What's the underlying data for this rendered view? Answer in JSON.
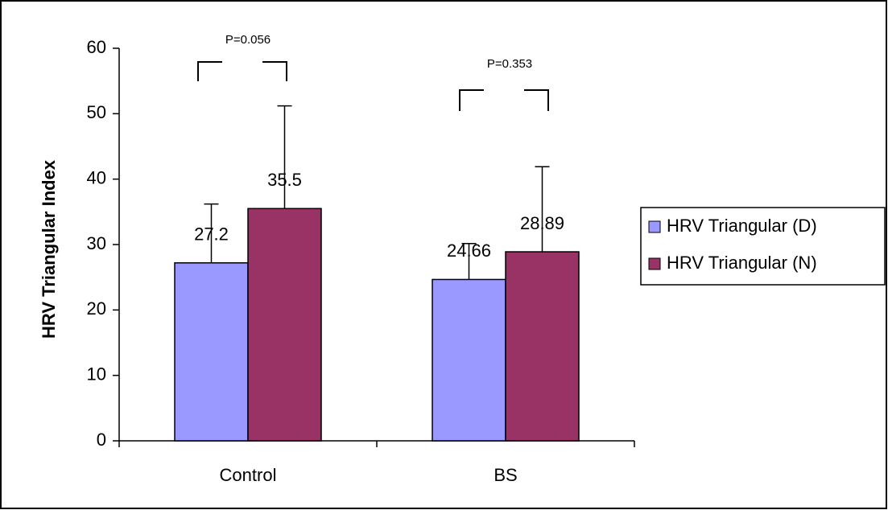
{
  "chart_data": {
    "type": "bar",
    "y_label": "HRV Triangular Index",
    "categories": [
      "Control",
      "BS"
    ],
    "series": [
      {
        "name": "HRV Triangular (D)",
        "color": "#9999ff",
        "values": [
          27.2,
          24.66
        ],
        "errors": [
          9.0,
          5.5
        ]
      },
      {
        "name": "HRV Triangular (N)",
        "color": "#993366",
        "values": [
          35.5,
          28.89
        ],
        "errors": [
          15.7,
          13.0
        ]
      }
    ],
    "annotations": [
      "P=0.056",
      "P=0.353"
    ],
    "ylim": [
      0,
      60
    ],
    "yticks": [
      0,
      10,
      20,
      30,
      40,
      50,
      60
    ],
    "legend": "right"
  }
}
